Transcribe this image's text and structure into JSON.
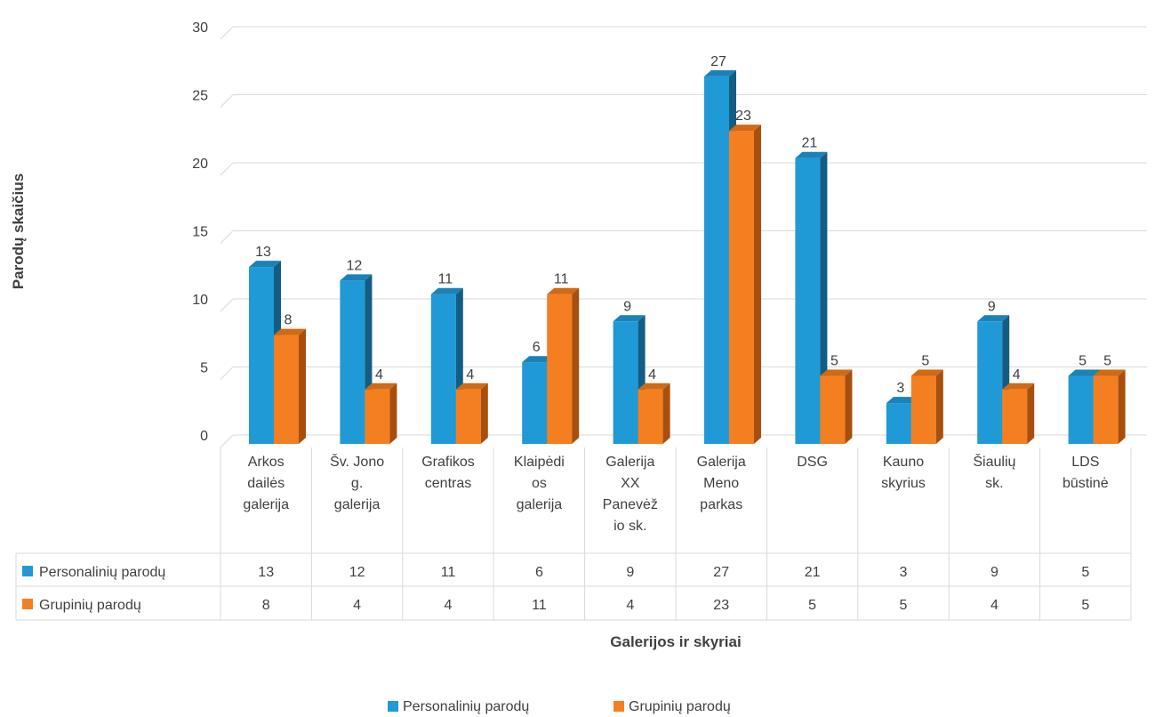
{
  "chart_data": {
    "type": "bar",
    "categories": [
      [
        "Arkos",
        "dailės",
        "galerija"
      ],
      [
        "Šv. Jono",
        "g.",
        "galerija"
      ],
      [
        "Grafikos",
        "centras"
      ],
      [
        "Klaipėdi",
        "os",
        "galerija"
      ],
      [
        "Galerija",
        "XX",
        "Panevėž",
        "io sk."
      ],
      [
        "Galerija",
        "Meno",
        "parkas"
      ],
      [
        "DSG"
      ],
      [
        "Kauno",
        "skyrius"
      ],
      [
        "Šiaulių",
        "sk."
      ],
      [
        "LDS",
        "būstinė"
      ]
    ],
    "series": [
      {
        "name": "Personalinių parodų",
        "values": [
          13,
          12,
          11,
          6,
          9,
          27,
          21,
          3,
          9,
          5
        ],
        "color": "#1f9ad6",
        "side_color": "#135d85",
        "top_color": "#1b82b8"
      },
      {
        "name": "Grupinių parodų",
        "values": [
          8,
          4,
          4,
          11,
          4,
          23,
          5,
          5,
          4,
          5
        ],
        "color": "#f47f20",
        "side_color": "#a84f0d",
        "top_color": "#d06a14"
      }
    ],
    "ylabel": "Parodų skaičius",
    "xlabel": "Galerijos ir skyriai",
    "ylim": [
      0,
      30
    ],
    "yticks": [
      0,
      5,
      10,
      15,
      20,
      25,
      30
    ],
    "grid": true,
    "legend_position": "bottom",
    "data_table": true
  }
}
